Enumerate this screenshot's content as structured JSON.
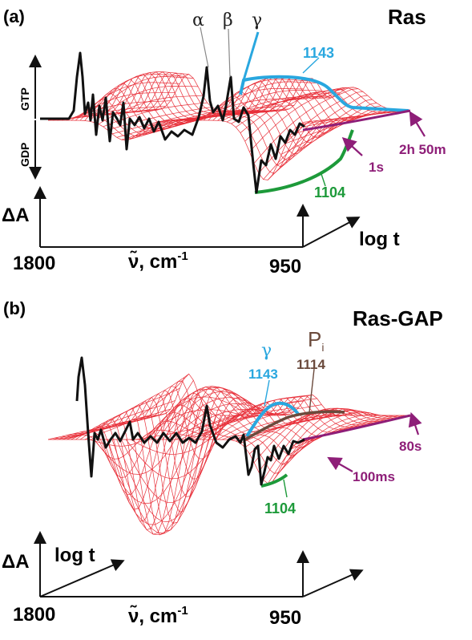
{
  "panels": [
    {
      "label": "(a)",
      "title": "Ras",
      "peaks": [
        "α",
        "β",
        "γ"
      ],
      "band_top": "1143",
      "band_bottom": "1104",
      "times": [
        "2h 50m",
        "1s"
      ],
      "axis_y": "ΔA",
      "axis_t": "log t",
      "x_left": "1800",
      "x_right": "950",
      "x_unit": "ν̃,  cm",
      "x_unit_exp": "-1",
      "side_top": "GTP",
      "side_bottom": "GDP"
    },
    {
      "label": "(b)",
      "title": "Ras-GAP",
      "peak_gamma": "γ",
      "band_gamma": "1143",
      "band_pi": "1114",
      "pi_label": "P",
      "pi_sub": "i",
      "band_bottom": "1104",
      "times": [
        "80s",
        "100ms"
      ],
      "axis_y": "ΔA",
      "axis_t": "log t",
      "x_left": "1800",
      "x_right": "950",
      "x_unit": "ν̃,  cm",
      "x_unit_exp": "-1"
    }
  ],
  "colors": {
    "mesh": "#e8303a",
    "spectrum": "#111111",
    "band_1143": "#29a7df",
    "band_1104": "#1d9a3a",
    "band_1114": "#6b4a3c",
    "time_arrow": "#8e1e78"
  }
}
